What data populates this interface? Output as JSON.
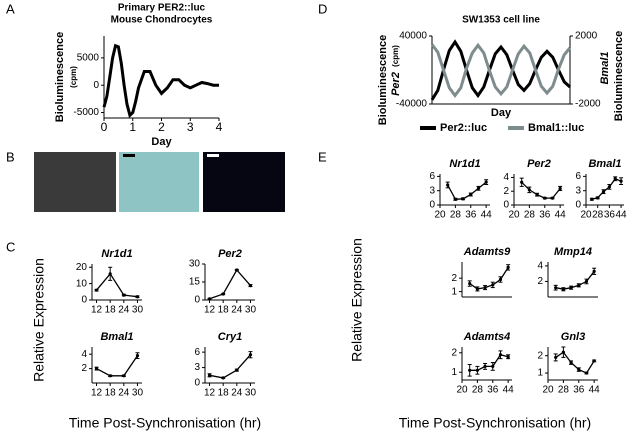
{
  "panels": [
    {
      "letter": "A"
    },
    {
      "letter": "B"
    },
    {
      "letter": "C",
      "ylabel": "Relative Expression",
      "xlabel": "Time Post-Synchronisation (hr)"
    },
    {
      "letter": "D"
    },
    {
      "letter": "E",
      "ylabel": "Relative Expression",
      "xlabel": "Time Post-Synchronisation (hr)"
    }
  ],
  "chart_data": [
    {
      "type": "line",
      "title": "Primary PER2::luc",
      "subtitle": "Mouse Chondrocytes",
      "ylabel": "Bioluminescence",
      "ylabel_unit": "(cpm)",
      "xlabel": "Day",
      "x": [
        0,
        0.1,
        0.2,
        0.3,
        0.4,
        0.5,
        0.6,
        0.7,
        0.8,
        0.9,
        1.0,
        1.1,
        1.2,
        1.4,
        1.6,
        1.8,
        2.0,
        2.2,
        2.4,
        2.6,
        2.8,
        3.0,
        3.2,
        3.4,
        3.6,
        3.8,
        4.0
      ],
      "series": [
        {
          "color": "#000000",
          "values": [
            -4000,
            -2000,
            1500,
            5000,
            7200,
            7000,
            4000,
            0,
            -3500,
            -5500,
            -5000,
            -3000,
            -500,
            2500,
            2500,
            0,
            -1500,
            -500,
            1000,
            1000,
            0,
            -500,
            0,
            500,
            300,
            0,
            0
          ]
        }
      ],
      "xlim": [
        0,
        4
      ],
      "xticks": [
        0,
        1,
        2,
        3,
        4
      ],
      "ylim": [
        -6000,
        9000
      ],
      "yticks": [
        -5000,
        0,
        5000
      ]
    },
    {
      "type": "line",
      "title": "Nr1d1",
      "x": [
        12,
        18,
        24,
        30
      ],
      "series": [
        {
          "color": "#000000",
          "values": [
            6,
            16,
            3,
            2
          ],
          "errors": [
            0.5,
            4,
            0.5,
            0.5
          ]
        }
      ],
      "xlim": [
        10,
        32
      ],
      "xticks": [
        12,
        18,
        24,
        30
      ],
      "ylim": [
        0,
        22
      ],
      "yticks": [
        0,
        10,
        20
      ]
    },
    {
      "type": "line",
      "title": "Per2",
      "x": [
        12,
        18,
        24,
        30
      ],
      "series": [
        {
          "color": "#000000",
          "values": [
            1,
            5,
            25,
            12
          ],
          "errors": [
            0.3,
            0.5,
            0.5,
            0.8
          ]
        }
      ],
      "xlim": [
        10,
        32
      ],
      "xticks": [
        12,
        18,
        24,
        30
      ],
      "ylim": [
        0,
        30
      ],
      "yticks": [
        0,
        15,
        30
      ]
    },
    {
      "type": "line",
      "title": "Bmal1",
      "x": [
        12,
        18,
        24,
        30
      ],
      "series": [
        {
          "color": "#000000",
          "values": [
            2,
            1,
            1,
            3.8
          ],
          "errors": [
            0.2,
            0.1,
            0.1,
            0.4
          ]
        }
      ],
      "xlim": [
        10,
        32
      ],
      "xticks": [
        12,
        18,
        24,
        30
      ],
      "ylim": [
        0,
        5
      ],
      "yticks": [
        2,
        4
      ]
    },
    {
      "type": "line",
      "title": "Cry1",
      "x": [
        12,
        18,
        24,
        30
      ],
      "series": [
        {
          "color": "#000000",
          "values": [
            1.5,
            1,
            2.5,
            5.5
          ],
          "errors": [
            0.3,
            0.1,
            0.2,
            0.6
          ]
        }
      ],
      "xlim": [
        10,
        32
      ],
      "xticks": [
        12,
        18,
        24,
        30
      ],
      "ylim": [
        0,
        7
      ],
      "yticks": [
        0,
        3,
        6
      ]
    },
    {
      "type": "line",
      "title": "SW1353 cell line",
      "ylabel": "Bioluminescence",
      "ylabel_gene": "Per2",
      "ylabel_unit": "(cpm)",
      "y2label_gene": "Bmal1",
      "y2label": "Bioluminescence",
      "xlabel": "Day",
      "x": [
        0,
        0.25,
        0.5,
        0.75,
        1,
        1.25,
        1.5,
        1.75,
        2,
        2.25,
        2.5,
        2.75,
        3,
        3.25,
        3.5,
        3.75,
        4,
        4.25,
        4.5,
        4.75,
        5,
        5.25,
        5.5,
        5.75,
        6
      ],
      "series": [
        {
          "name": "Per2::luc",
          "color": "#000000",
          "values": [
            -35000,
            -24000,
            0,
            23000,
            33000,
            22000,
            0,
            -21000,
            -30000,
            -20000,
            0,
            19000,
            27000,
            18000,
            0,
            -17000,
            -24000,
            -16000,
            0,
            15000,
            22000,
            15000,
            0,
            -14000,
            -20000
          ]
        },
        {
          "name": "Bmal1::luc",
          "color": "#7f8c8d",
          "axis": "y2",
          "values": [
            1500,
            1050,
            0,
            -1050,
            -1500,
            -1050,
            100,
            1000,
            1450,
            1000,
            -50,
            -1000,
            -1400,
            -1000,
            0,
            950,
            1400,
            1000,
            0,
            -950,
            -1350,
            -950,
            50,
            900,
            1300
          ]
        }
      ],
      "xlim": [
        0,
        6
      ],
      "ylim": [
        -40000,
        40000
      ],
      "yticks": [
        -40000,
        40000
      ],
      "y2lim": [
        -2000,
        2000
      ],
      "y2ticks": [
        -2000,
        2000
      ]
    },
    {
      "type": "line",
      "title": "Nr1d1",
      "x": [
        24,
        28,
        32,
        36,
        40,
        44
      ],
      "series": [
        {
          "color": "#000000",
          "values": [
            4.2,
            1.2,
            1.3,
            2.2,
            3.5,
            4.8
          ],
          "errors": [
            0.6,
            0.2,
            0.2,
            0.3,
            0.4,
            0.5
          ]
        }
      ],
      "xlim": [
        20,
        46
      ],
      "xticks": [
        20,
        28,
        36,
        44
      ],
      "ylim": [
        0,
        6.5
      ],
      "yticks": [
        0,
        3,
        6
      ]
    },
    {
      "type": "line",
      "title": "Per2",
      "x": [
        24,
        28,
        32,
        36,
        40,
        44
      ],
      "series": [
        {
          "color": "#000000",
          "values": [
            3.3,
            2.2,
            1.5,
            1.0,
            1.0,
            2.4
          ],
          "errors": [
            0.6,
            0.4,
            0.2,
            0.1,
            0.1,
            0.3
          ]
        }
      ],
      "xlim": [
        20,
        46
      ],
      "xticks": [
        20,
        28,
        36,
        44
      ],
      "ylim": [
        0,
        4.5
      ],
      "yticks": [
        0,
        2,
        4
      ]
    },
    {
      "type": "line",
      "title": "Bmal1",
      "x": [
        24,
        28,
        32,
        36,
        40,
        44
      ],
      "series": [
        {
          "color": "#000000",
          "values": [
            1.2,
            1.5,
            2.8,
            3.8,
            5.5,
            5.0
          ],
          "errors": [
            0.2,
            0.2,
            0.4,
            0.5,
            0.4,
            0.7
          ]
        }
      ],
      "xlim": [
        20,
        46
      ],
      "xticks": [
        20,
        28,
        36,
        44
      ],
      "ylim": [
        0,
        6.5
      ],
      "yticks": [
        0,
        3,
        6
      ]
    },
    {
      "type": "line",
      "title": "Adamts9",
      "x": [
        24,
        28,
        32,
        36,
        40,
        44
      ],
      "series": [
        {
          "color": "#000000",
          "values": [
            1.6,
            1.2,
            1.3,
            1.5,
            1.9,
            2.8
          ],
          "errors": [
            0.2,
            0.15,
            0.15,
            0.2,
            0.2,
            0.2
          ]
        }
      ],
      "xlim": [
        20,
        46
      ],
      "ylim": [
        0.6,
        3.2
      ],
      "yticks": [
        1,
        2
      ]
    },
    {
      "type": "line",
      "title": "Mmp14",
      "x": [
        24,
        28,
        32,
        36,
        40,
        44
      ],
      "series": [
        {
          "color": "#000000",
          "values": [
            1.2,
            1.0,
            1.2,
            1.5,
            2.0,
            3.3
          ],
          "errors": [
            0.3,
            0.2,
            0.2,
            0.2,
            0.3,
            0.4
          ]
        }
      ],
      "xlim": [
        20,
        46
      ],
      "ylim": [
        0,
        4.5
      ],
      "yticks": [
        2,
        4
      ]
    },
    {
      "type": "line",
      "title": "Adamts4",
      "x": [
        24,
        28,
        32,
        36,
        40,
        44
      ],
      "series": [
        {
          "color": "#000000",
          "values": [
            1.1,
            1.1,
            1.3,
            1.3,
            1.9,
            1.8
          ],
          "errors": [
            0.3,
            0.2,
            0.15,
            0.2,
            0.2,
            0.1
          ]
        }
      ],
      "xlim": [
        20,
        46
      ],
      "xticks": [
        20,
        28,
        36,
        44
      ],
      "ylim": [
        0.6,
        2.3
      ],
      "yticks": [
        1,
        2
      ]
    },
    {
      "type": "line",
      "title": "Gnl3",
      "x": [
        24,
        28,
        32,
        36,
        40,
        44
      ],
      "series": [
        {
          "color": "#000000",
          "values": [
            1.9,
            2.2,
            1.6,
            1.2,
            1.0,
            1.7
          ],
          "errors": [
            0.2,
            0.3,
            0.1,
            0.1,
            0.05,
            0.05
          ]
        }
      ],
      "xlim": [
        20,
        46
      ],
      "xticks": [
        20,
        28,
        36,
        44
      ],
      "ylim": [
        0.6,
        2.5
      ],
      "yticks": [
        1,
        2
      ]
    }
  ]
}
